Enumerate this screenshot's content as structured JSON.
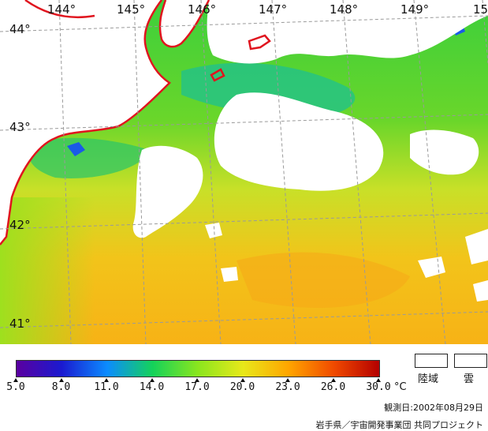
{
  "map": {
    "longitude_labels": [
      "144°",
      "145°",
      "146°",
      "147°",
      "148°",
      "149°",
      "15"
    ],
    "latitude_labels": [
      "44°",
      "43°",
      "42°",
      "41°"
    ],
    "colors": {
      "land": "#ffffff",
      "cloud": "#ffffff",
      "coastline": "#e0141e",
      "graticule": "#9a9a9a"
    }
  },
  "legend": {
    "colorbar_stops": [
      "#5a00a0",
      "#1a1ad0",
      "#0c8cff",
      "#14d25a",
      "#8ae61e",
      "#e8e81a",
      "#ffa500",
      "#f04a00",
      "#b40000"
    ],
    "ticks": [
      "5.0",
      "8.0",
      "11.0",
      "14.0",
      "17.0",
      "20.0",
      "23.0",
      "26.0",
      "30.0"
    ],
    "unit": "°C",
    "land_label": "陸域",
    "cloud_label": "雲"
  },
  "observation_date": "観測日:2002年08月29日",
  "credit": "岩手県／宇宙開発事業団 共同プロジェクト"
}
